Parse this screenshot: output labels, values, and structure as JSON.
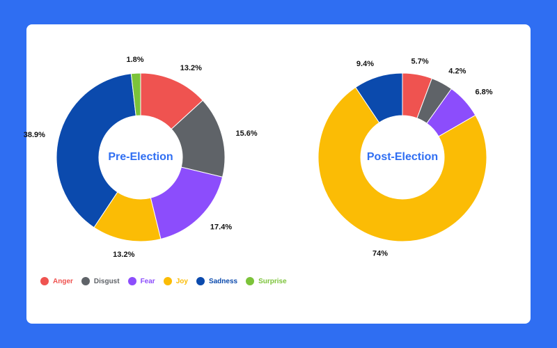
{
  "colors": {
    "background": "#2f6ef2",
    "card": "#ffffff",
    "center_label": "#2f6ef2"
  },
  "legend": [
    {
      "label": "Anger",
      "color": "#ef5350"
    },
    {
      "label": "Disgust",
      "color": "#5f6368"
    },
    {
      "label": "Fear",
      "color": "#8c4dfc"
    },
    {
      "label": "Joy",
      "color": "#fbbc05"
    },
    {
      "label": "Sadness",
      "color": "#0b4aad"
    },
    {
      "label": "Surprise",
      "color": "#7cc33a"
    }
  ],
  "chart_data": [
    {
      "type": "pie",
      "variant": "donut",
      "center_label": "Pre-Election",
      "categories": [
        "Anger",
        "Disgust",
        "Fear",
        "Joy",
        "Sadness",
        "Surprise"
      ],
      "values": [
        13.2,
        15.6,
        17.4,
        13.2,
        38.9,
        1.8
      ],
      "value_labels": [
        "13.2%",
        "15.6%",
        "17.4%",
        "13.2%",
        "38.9%",
        "1.8%"
      ],
      "legend_placement": "bottom-left"
    },
    {
      "type": "pie",
      "variant": "donut",
      "center_label": "Post-Election",
      "categories": [
        "Anger",
        "Disgust",
        "Fear",
        "Joy",
        "Sadness"
      ],
      "values": [
        5.7,
        4.2,
        6.8,
        74,
        9.4
      ],
      "value_labels": [
        "5.7%",
        "4.2%",
        "6.8%",
        "74%",
        "9.4%"
      ]
    }
  ]
}
